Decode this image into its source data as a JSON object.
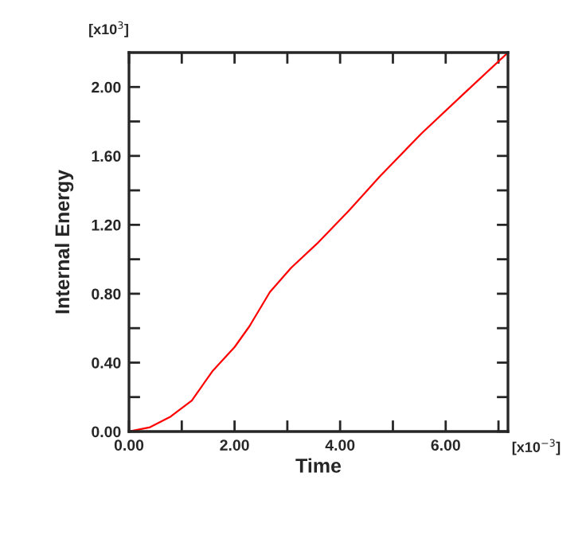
{
  "chart_data": {
    "type": "line",
    "xlabel": "Time",
    "ylabel": "Internal Energy",
    "annotations": [
      "[x10$^{3}$]",
      "[x10$^{−3}$]"
    ],
    "x": [
      0,
      0.4,
      0.79,
      1.19,
      1.58,
      2.0,
      2.28,
      2.67,
      3.07,
      3.56,
      4.16,
      4.75,
      5.54,
      6.34,
      7.18
    ],
    "series": [
      {
        "color": "#ff0000",
        "values": [
          0,
          0.025,
          0.087,
          0.18,
          0.35,
          0.49,
          0.61,
          0.81,
          0.95,
          1.09,
          1.28,
          1.48,
          1.73,
          1.96,
          2.2
        ]
      }
    ],
    "xlim": [
      0,
      7.18
    ],
    "ylim": [
      0,
      2.2
    ],
    "xticks": [
      {
        "value": 0,
        "label": "0.00"
      },
      {
        "value": 1,
        "label": null
      },
      {
        "value": 2,
        "label": "2.00"
      },
      {
        "value": 3,
        "label": null
      },
      {
        "value": 4,
        "label": "4.00"
      },
      {
        "value": 5,
        "label": null
      },
      {
        "value": 6,
        "label": "6.00"
      },
      {
        "value": 7,
        "label": null
      }
    ],
    "yticks": [
      {
        "value": 0,
        "label": "0.00"
      },
      {
        "value": 0.2,
        "label": null
      },
      {
        "value": 0.4,
        "label": "0.40"
      },
      {
        "value": 0.6,
        "label": null
      },
      {
        "value": 0.8,
        "label": "0.80"
      },
      {
        "value": 1.0,
        "label": null
      },
      {
        "value": 1.2,
        "label": "1.20"
      },
      {
        "value": 1.4,
        "label": null
      },
      {
        "value": 1.6,
        "label": "1.60"
      },
      {
        "value": 1.8,
        "label": null
      },
      {
        "value": 2.0,
        "label": "2.00"
      }
    ],
    "grid": false,
    "legend": false
  }
}
